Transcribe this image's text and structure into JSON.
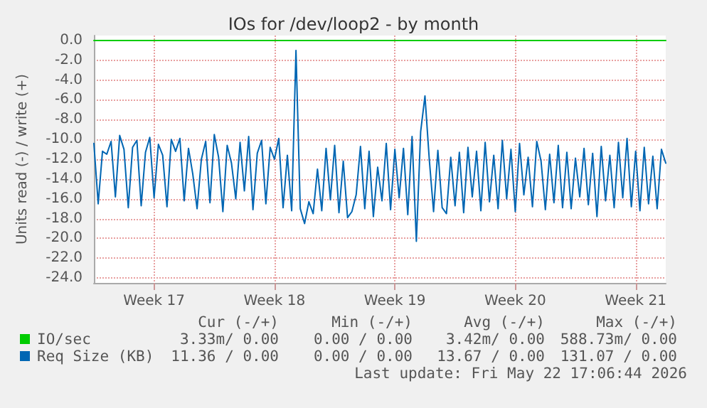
{
  "chart_data": {
    "type": "line",
    "title": "IOs for /dev/loop2 - by month",
    "ylabel": "Units read (-) / write (+)",
    "categories": [
      null,
      null,
      null,
      null,
      null,
      null,
      null,
      null,
      null,
      null,
      null,
      null,
      null,
      null,
      "Week 17",
      null,
      null,
      null,
      null,
      null,
      null,
      null,
      null,
      null,
      null,
      null,
      null,
      null,
      null,
      null,
      null,
      null,
      null,
      null,
      null,
      null,
      null,
      null,
      null,
      null,
      null,
      null,
      "Week 18",
      null,
      null,
      null,
      null,
      null,
      null,
      null,
      null,
      null,
      null,
      null,
      null,
      null,
      null,
      null,
      null,
      null,
      null,
      null,
      null,
      null,
      null,
      null,
      null,
      null,
      null,
      null,
      "Week 19",
      null,
      null,
      null,
      null,
      null,
      null,
      null,
      null,
      null,
      null,
      null,
      null,
      null,
      null,
      null,
      null,
      null,
      null,
      null,
      null,
      null,
      null,
      null,
      null,
      null,
      null,
      null,
      "Week 20",
      null,
      null,
      null,
      null,
      null,
      null,
      null,
      null,
      null,
      null,
      null,
      null,
      null,
      null,
      null,
      null,
      null,
      null,
      null,
      null,
      null,
      null,
      null,
      null,
      null,
      null,
      null,
      "Week 21",
      null,
      null,
      null,
      null,
      null,
      null,
      null
    ],
    "ylim": [
      -24.5,
      0.5
    ],
    "yticks": [
      {
        "value": -24,
        "label": "-24.0"
      },
      {
        "value": -22,
        "label": "-22.0"
      },
      {
        "value": -20,
        "label": "-20.0"
      },
      {
        "value": -18,
        "label": "-18.0"
      },
      {
        "value": -16,
        "label": "-16.0"
      },
      {
        "value": -14,
        "label": "-14.0"
      },
      {
        "value": -12,
        "label": "-12.0"
      },
      {
        "value": -10,
        "label": "-10.0"
      },
      {
        "value": -8,
        "label": "-8.0"
      },
      {
        "value": -6,
        "label": "-6.0"
      },
      {
        "value": -4,
        "label": "-4.0"
      },
      {
        "value": -2,
        "label": "-2.0"
      },
      {
        "value": 0,
        "label": "0.0"
      }
    ],
    "grid": true,
    "legend": "bottom",
    "marker": "none",
    "line_style": "solid",
    "series": [
      {
        "name": "IO/sec",
        "color": "#00cc00",
        "values": [
          0,
          0,
          0,
          0,
          0,
          0,
          0,
          0,
          0,
          0,
          0,
          0,
          0,
          0,
          0,
          0,
          0,
          0,
          0,
          0,
          0,
          0,
          0,
          0,
          0,
          0,
          0,
          0,
          0,
          0,
          0,
          0,
          0,
          0,
          0,
          0,
          0,
          0,
          0,
          0,
          0,
          0,
          0,
          0,
          0,
          0,
          0,
          0,
          0,
          0,
          0,
          0,
          0,
          0,
          0,
          0,
          0,
          0,
          0,
          0,
          0,
          0,
          0,
          0,
          0,
          0,
          0,
          0,
          0,
          0,
          0,
          0,
          0,
          0,
          0,
          0,
          0,
          0,
          0,
          0,
          0,
          0,
          0,
          0,
          0,
          0,
          0,
          0,
          0,
          0,
          0,
          0,
          0,
          0,
          0,
          0,
          0,
          0,
          0,
          0,
          0,
          0,
          0,
          0,
          0,
          0,
          0,
          0,
          0,
          0,
          0,
          0,
          0,
          0,
          0,
          0,
          0,
          0,
          0,
          0,
          0,
          0,
          0,
          0,
          0,
          0,
          0,
          0,
          0,
          0,
          0,
          0,
          0,
          0
        ]
      },
      {
        "name": "Req Size (KB)",
        "color": "#0066b3",
        "values": [
          -10.4,
          -16.5,
          -11.2,
          -11.5,
          -10.2,
          -15.8,
          -9.6,
          -11.0,
          -16.9,
          -10.8,
          -10.1,
          -16.7,
          -11.3,
          -9.8,
          -15.9,
          -10.5,
          -11.6,
          -16.8,
          -10.0,
          -11.2,
          -9.9,
          -16.2,
          -10.9,
          -13.5,
          -17.0,
          -12.0,
          -10.2,
          -16.4,
          -9.5,
          -11.8,
          -17.3,
          -10.6,
          -12.4,
          -16.0,
          -10.3,
          -15.2,
          -9.7,
          -17.1,
          -11.4,
          -10.1,
          -16.5,
          -10.8,
          -12.0,
          -9.9,
          -16.9,
          -11.6,
          -17.2,
          -1.0,
          -17.0,
          -18.5,
          -16.3,
          -17.5,
          -13.0,
          -17.2,
          -10.9,
          -16.1,
          -10.6,
          -17.4,
          -12.2,
          -17.9,
          -17.3,
          -15.6,
          -10.7,
          -17.0,
          -11.2,
          -17.8,
          -12.8,
          -16.2,
          -10.4,
          -17.1,
          -11.0,
          -15.9,
          -10.9,
          -17.6,
          -9.7,
          -20.3,
          -9.2,
          -5.6,
          -12.0,
          -17.3,
          -11.1,
          -16.9,
          -17.5,
          -11.8,
          -16.7,
          -11.3,
          -17.4,
          -10.8,
          -15.8,
          -11.2,
          -17.2,
          -10.3,
          -16.3,
          -11.6,
          -17.0,
          -10.1,
          -16.0,
          -11.0,
          -17.3,
          -10.4,
          -15.6,
          -11.8,
          -16.8,
          -10.2,
          -12.2,
          -17.1,
          -11.5,
          -16.4,
          -10.6,
          -16.9,
          -11.3,
          -17.0,
          -11.9,
          -15.8,
          -10.9,
          -16.6,
          -11.4,
          -17.8,
          -10.7,
          -16.2,
          -11.6,
          -16.9,
          -10.3,
          -15.9,
          -9.9,
          -16.8,
          -11.2,
          -17.2,
          -10.8,
          -16.5,
          -11.7,
          -17.0,
          -11.0,
          -12.4
        ]
      }
    ],
    "annotations": [
      "Cur (-/+)",
      "Min (-/+)",
      "Avg (-/+)",
      "Max (-/+)",
      "3.33m/ 0.00",
      "0.00 / 0.00",
      "3.42m/ 0.00",
      "588.73m/ 0.00",
      "11.36 / 0.00",
      "0.00 / 0.00",
      "13.67 / 0.00",
      "131.07 / 0.00",
      "Last update: Fri May 22 17:06:44 2026"
    ]
  }
}
